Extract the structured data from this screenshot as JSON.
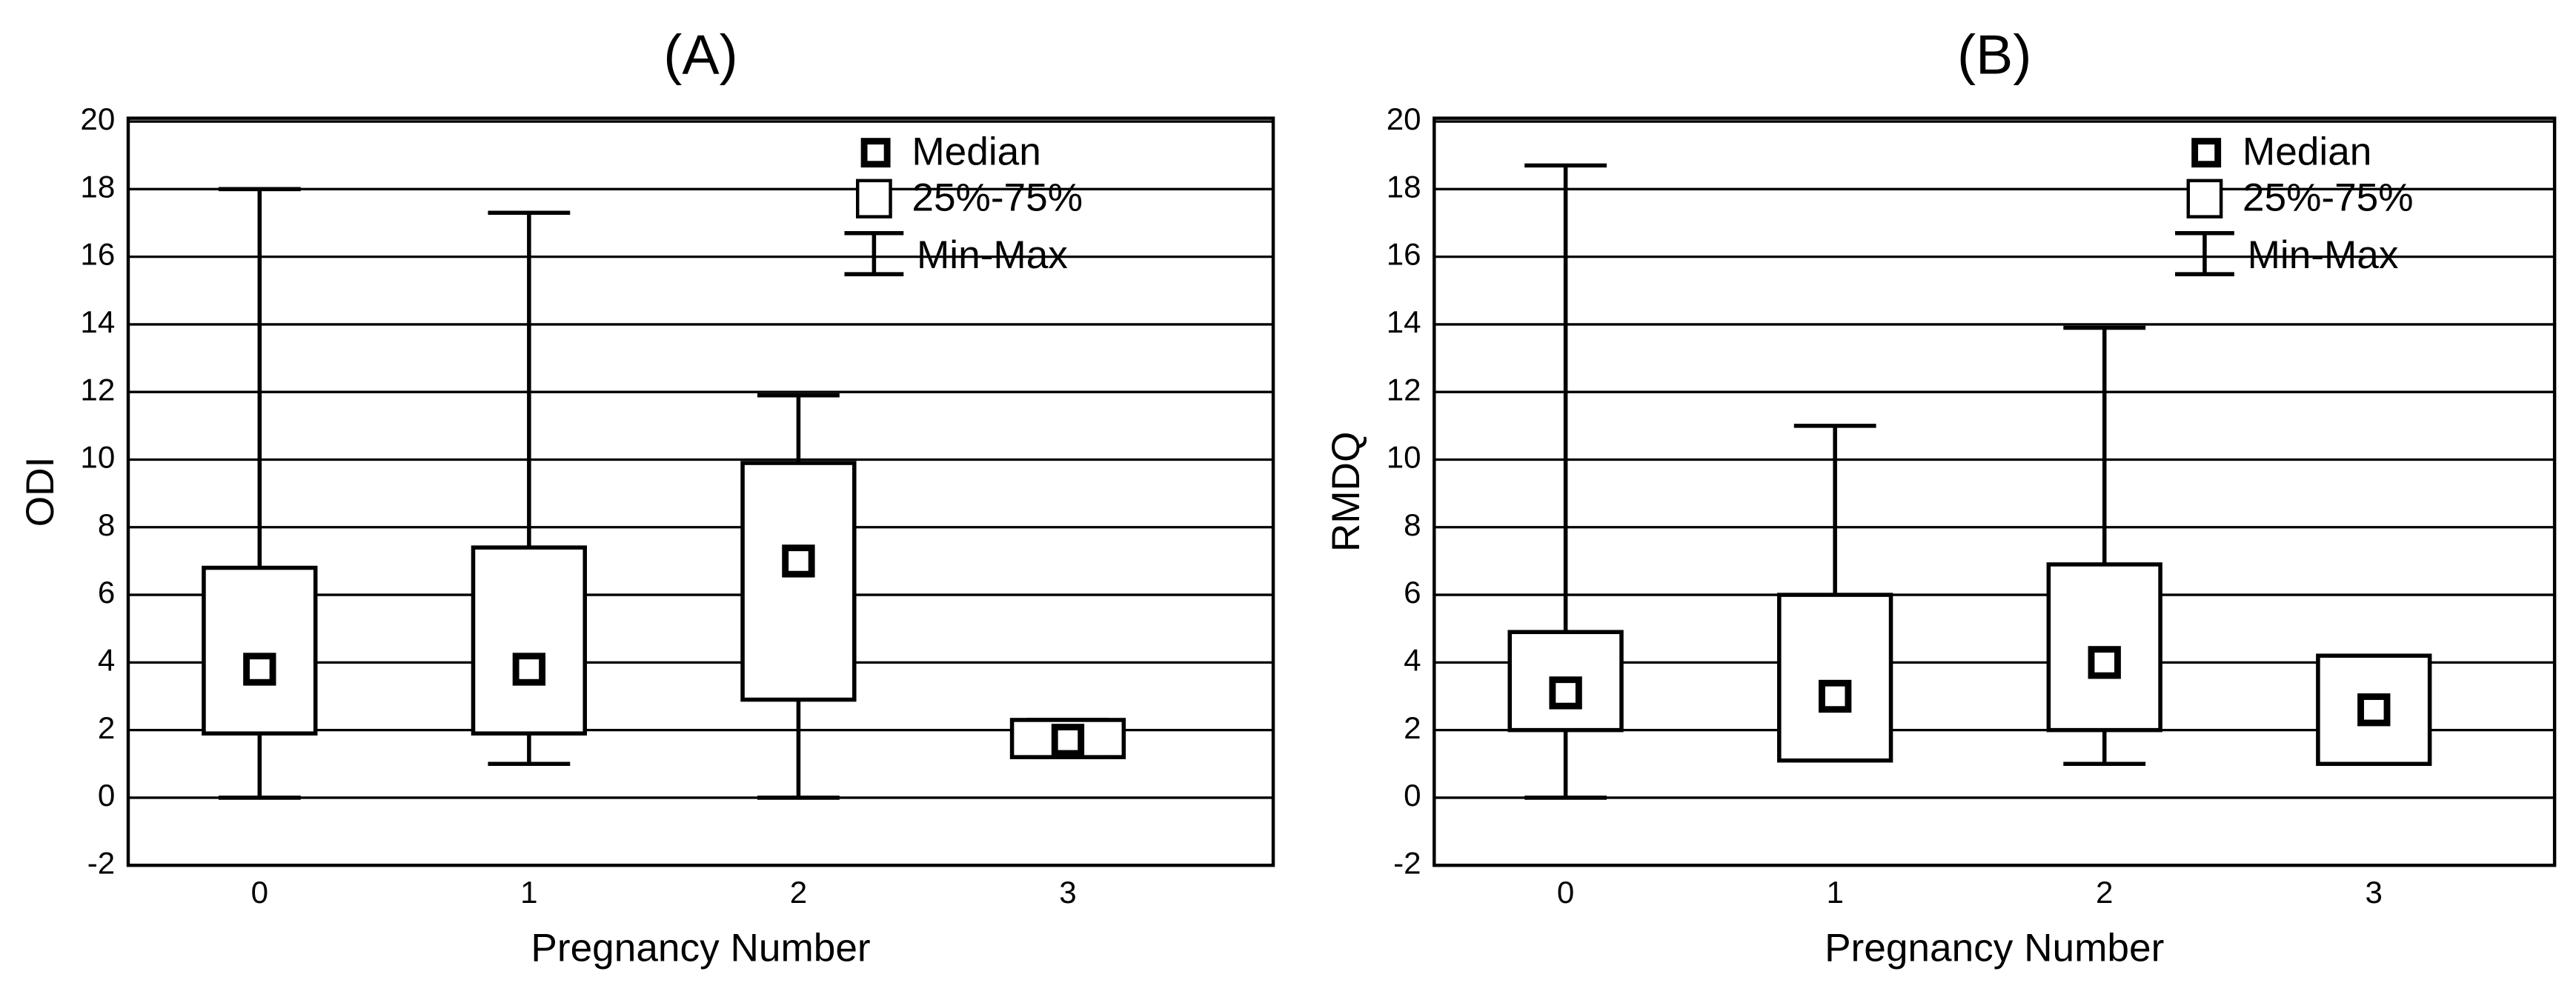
{
  "chart_data": [
    {
      "type": "box",
      "title": "(A)",
      "x_label": "Pregnancy Number",
      "y_label": "ODI",
      "categories": [
        "0",
        "1",
        "2",
        "3"
      ],
      "min": [
        0,
        1,
        0,
        1.2
      ],
      "q1": [
        1.9,
        1.9,
        2.9,
        1.2
      ],
      "median": [
        3.8,
        3.8,
        7.0,
        1.7
      ],
      "q3": [
        6.8,
        7.4,
        9.9,
        2.3
      ],
      "max": [
        18,
        17.3,
        11.9,
        2.3
      ],
      "ylim": [
        -2,
        20
      ],
      "yticks": [
        -2,
        0,
        2,
        4,
        6,
        8,
        10,
        12,
        14,
        16,
        18,
        20
      ],
      "grid": true,
      "legend": [
        "Median",
        "25%-75%",
        "Min-Max"
      ]
    },
    {
      "type": "box",
      "title": "(B)",
      "x_label": "Pregnancy Number",
      "y_label": "RMDQ",
      "categories": [
        "0",
        "1",
        "2",
        "3"
      ],
      "min": [
        0,
        1.1,
        1,
        1
      ],
      "q1": [
        2,
        1.1,
        2,
        1
      ],
      "median": [
        3.1,
        3,
        4,
        2.6
      ],
      "q3": [
        4.9,
        6,
        6.9,
        4.2
      ],
      "max": [
        18.7,
        11,
        13.9,
        4.2
      ],
      "ylim": [
        -2,
        20
      ],
      "yticks": [
        -2,
        0,
        2,
        4,
        6,
        8,
        10,
        12,
        14,
        16,
        18,
        20
      ],
      "grid": true,
      "legend": [
        "Median",
        "25%-75%",
        "Min-Max"
      ]
    }
  ]
}
